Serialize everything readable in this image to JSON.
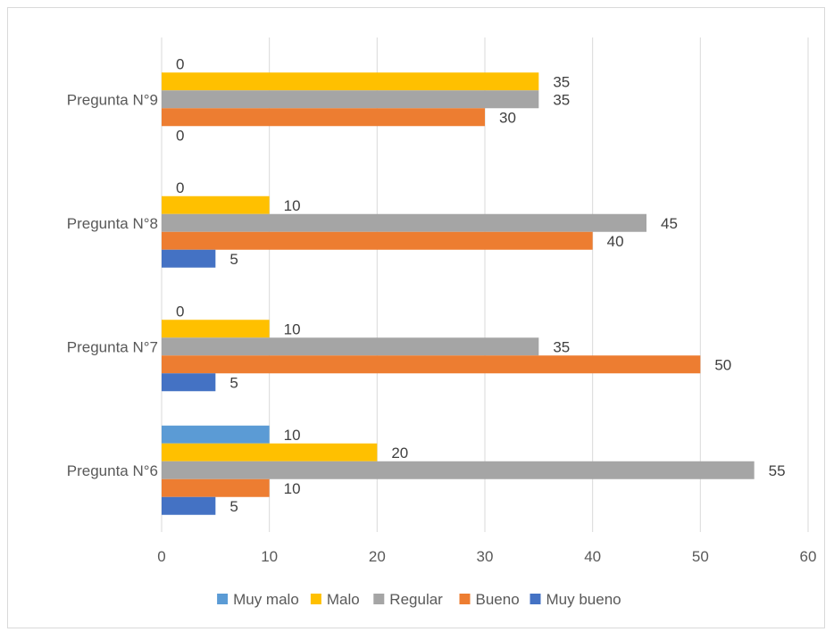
{
  "chart_data": {
    "type": "bar",
    "orientation": "horizontal",
    "categories": [
      "Pregunta N°6",
      "Pregunta N°7",
      "Pregunta N°8",
      "Pregunta N°9"
    ],
    "series": [
      {
        "name": "Muy malo",
        "color": "#5B9BD5",
        "values": [
          10,
          0,
          0,
          0
        ]
      },
      {
        "name": "Malo",
        "color": "#FFC000",
        "values": [
          20,
          10,
          10,
          35
        ]
      },
      {
        "name": "Regular",
        "color": "#A5A5A5",
        "values": [
          55,
          35,
          45,
          35
        ]
      },
      {
        "name": "Bueno",
        "color": "#ED7D31",
        "values": [
          10,
          50,
          40,
          30
        ]
      },
      {
        "name": "Muy bueno",
        "color": "#4472C4",
        "values": [
          5,
          5,
          5,
          0
        ]
      }
    ],
    "xlim": [
      0,
      60
    ],
    "xticks": [
      0,
      10,
      20,
      30,
      40,
      50,
      60
    ],
    "grid": true,
    "legend": "bottom",
    "data_labels": true
  }
}
